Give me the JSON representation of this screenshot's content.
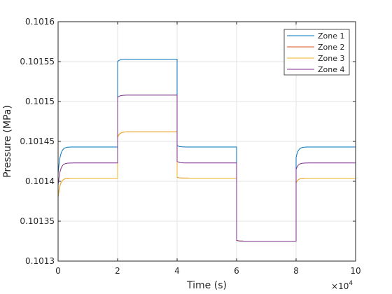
{
  "chart_data": {
    "type": "line",
    "title": "",
    "xlabel": "Time (s)",
    "ylabel": "Pressure (MPa)",
    "x_exponent_label": "10",
    "x_exponent_power": "4",
    "xlim": [
      0,
      100000
    ],
    "ylim": [
      0.1013,
      0.1016
    ],
    "grid": true,
    "legend_position": "top-right",
    "x_ticks": [
      0,
      20000,
      40000,
      60000,
      80000,
      100000
    ],
    "x_tick_labels": [
      "0",
      "2",
      "4",
      "6",
      "8",
      "10"
    ],
    "y_ticks": [
      0.1013,
      0.10135,
      0.1014,
      0.10145,
      0.1015,
      0.10155,
      0.1016
    ],
    "y_tick_labels": [
      "0.1013",
      "0.10135",
      "0.1014",
      "0.10145",
      "0.1015",
      "0.10155",
      "0.1016"
    ],
    "series": [
      {
        "name": "Zone 1",
        "color": "#0072BD",
        "segments": [
          {
            "x0": 0,
            "x1": 20000,
            "start": 0.10141,
            "end": 0.101443
          },
          {
            "x0": 20000,
            "x1": 40000,
            "start": 0.10155,
            "end": 0.101553
          },
          {
            "x0": 40000,
            "x1": 60000,
            "start": 0.101445,
            "end": 0.101443
          },
          {
            "x0": 60000,
            "x1": 80000,
            "start": 0.101326,
            "end": 0.101325
          },
          {
            "x0": 80000,
            "x1": 100000,
            "start": 0.10143,
            "end": 0.101443
          }
        ]
      },
      {
        "name": "Zone 2",
        "color": "#D95319",
        "segments": [
          {
            "x0": 0,
            "x1": 20000,
            "start": 0.10138,
            "end": 0.101404
          },
          {
            "x0": 20000,
            "x1": 40000,
            "start": 0.101455,
            "end": 0.101462
          },
          {
            "x0": 40000,
            "x1": 60000,
            "start": 0.101405,
            "end": 0.101404
          },
          {
            "x0": 60000,
            "x1": 80000,
            "start": 0.101326,
            "end": 0.101325
          },
          {
            "x0": 80000,
            "x1": 100000,
            "start": 0.101398,
            "end": 0.101404
          }
        ]
      },
      {
        "name": "Zone 3",
        "color": "#EDB120",
        "segments": [
          {
            "x0": 0,
            "x1": 20000,
            "start": 0.10138,
            "end": 0.101404
          },
          {
            "x0": 20000,
            "x1": 40000,
            "start": 0.101455,
            "end": 0.101462
          },
          {
            "x0": 40000,
            "x1": 60000,
            "start": 0.101405,
            "end": 0.101404
          },
          {
            "x0": 60000,
            "x1": 80000,
            "start": 0.101326,
            "end": 0.101325
          },
          {
            "x0": 80000,
            "x1": 100000,
            "start": 0.101398,
            "end": 0.101404
          }
        ]
      },
      {
        "name": "Zone 4",
        "color": "#7E2F8E",
        "segments": [
          {
            "x0": 0,
            "x1": 20000,
            "start": 0.101395,
            "end": 0.101423
          },
          {
            "x0": 20000,
            "x1": 40000,
            "start": 0.101505,
            "end": 0.101508
          },
          {
            "x0": 40000,
            "x1": 60000,
            "start": 0.101425,
            "end": 0.101423
          },
          {
            "x0": 60000,
            "x1": 80000,
            "start": 0.101326,
            "end": 0.101325
          },
          {
            "x0": 80000,
            "x1": 100000,
            "start": 0.101415,
            "end": 0.101423
          }
        ]
      }
    ]
  }
}
